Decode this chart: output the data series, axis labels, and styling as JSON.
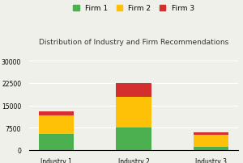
{
  "title": "Distribution of Industry and Firm Recommendations",
  "categories": [
    "Industry 1",
    "Industry 2",
    "Industry 3"
  ],
  "firm1_values": [
    5500,
    7500,
    1000
  ],
  "firm2_values": [
    6000,
    10500,
    4000
  ],
  "firm3_values": [
    1500,
    4500,
    1000
  ],
  "firm1_color": "#4caf50",
  "firm2_color": "#ffc107",
  "firm3_color": "#d32f2f",
  "legend_labels": [
    "Firm 1",
    "Firm 2",
    "Firm 3"
  ],
  "yticks": [
    0,
    7500,
    15000,
    22500,
    30000
  ],
  "ylim": [
    0,
    32000
  ],
  "background_color": "#f0f0eb",
  "title_fontsize": 6.5,
  "tick_fontsize": 5.5,
  "legend_fontsize": 6.5
}
